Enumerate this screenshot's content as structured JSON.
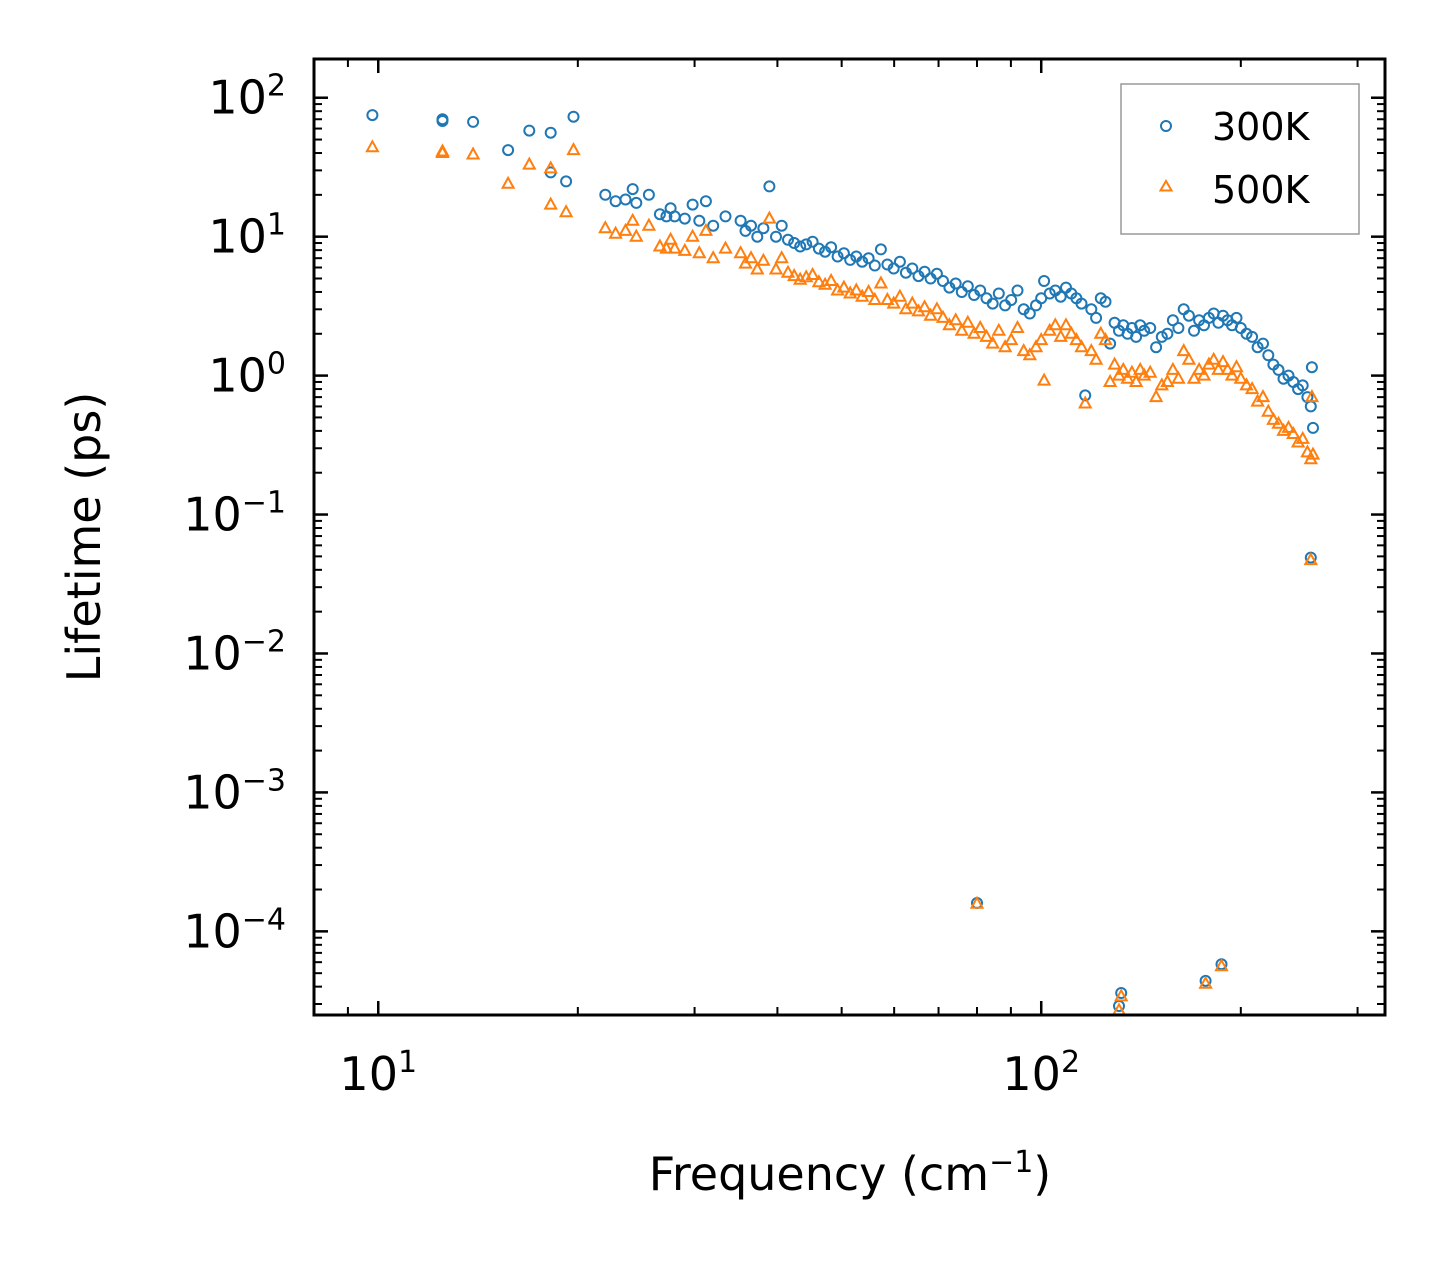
{
  "chart_data": {
    "type": "scatter",
    "title": "",
    "xlabel": "Frequency (cm",
    "xlabel_sup": "−1",
    "xlabel_suffix": ")",
    "ylabel": "Lifetime (ps)",
    "xscale": "log",
    "yscale": "log",
    "xlim": [
      8.0,
      330
    ],
    "ylim": [
      2.5e-05,
      190
    ],
    "x_ticks": [
      {
        "value": 10,
        "base": "10",
        "exp": "1"
      },
      {
        "value": 100,
        "base": "10",
        "exp": "2"
      }
    ],
    "y_ticks": [
      {
        "value": 100,
        "base": "10",
        "exp": "2"
      },
      {
        "value": 10,
        "base": "10",
        "exp": "1"
      },
      {
        "value": 1,
        "base": "10",
        "exp": "0"
      },
      {
        "value": 0.1,
        "base": "10",
        "exp": "−1"
      },
      {
        "value": 0.01,
        "base": "10",
        "exp": "−2"
      },
      {
        "value": 0.001,
        "base": "10",
        "exp": "−3"
      },
      {
        "value": 0.0001,
        "base": "10",
        "exp": "−4"
      }
    ],
    "legend_position": "top-right",
    "series": [
      {
        "name": "300K",
        "color": "#1f77b4",
        "marker": "circle",
        "points": [
          [
            9.8,
            75
          ],
          [
            12.5,
            70
          ],
          [
            12.5,
            68
          ],
          [
            13.9,
            67
          ],
          [
            15.7,
            42
          ],
          [
            16.9,
            58
          ],
          [
            18.2,
            29
          ],
          [
            18.2,
            56
          ],
          [
            19.2,
            25
          ],
          [
            19.7,
            73
          ],
          [
            22.0,
            20
          ],
          [
            22.8,
            18
          ],
          [
            23.6,
            18.5
          ],
          [
            24.2,
            22
          ],
          [
            24.5,
            17.5
          ],
          [
            25.6,
            20
          ],
          [
            26.6,
            14.5
          ],
          [
            27.2,
            14
          ],
          [
            27.6,
            16
          ],
          [
            28.0,
            14
          ],
          [
            29.0,
            13.5
          ],
          [
            29.8,
            17
          ],
          [
            30.5,
            13
          ],
          [
            31.2,
            18
          ],
          [
            32.0,
            12
          ],
          [
            33.4,
            14
          ],
          [
            35.2,
            13
          ],
          [
            35.8,
            11
          ],
          [
            36.5,
            12
          ],
          [
            37.3,
            10
          ],
          [
            38.1,
            11.5
          ],
          [
            38.9,
            23
          ],
          [
            39.8,
            10
          ],
          [
            40.6,
            12
          ],
          [
            41.5,
            9.5
          ],
          [
            42.4,
            9
          ],
          [
            43.3,
            8.5
          ],
          [
            44.2,
            8.8
          ],
          [
            45.2,
            9.2
          ],
          [
            46.2,
            8.2
          ],
          [
            47.2,
            7.8
          ],
          [
            48.2,
            8.4
          ],
          [
            49.3,
            7.2
          ],
          [
            50.4,
            7.6
          ],
          [
            51.5,
            6.8
          ],
          [
            52.6,
            7.2
          ],
          [
            53.7,
            6.6
          ],
          [
            54.9,
            7.0
          ],
          [
            56.1,
            6.2
          ],
          [
            57.3,
            8.1
          ],
          [
            58.6,
            6.3
          ],
          [
            59.9,
            5.9
          ],
          [
            61.2,
            6.6
          ],
          [
            62.5,
            5.5
          ],
          [
            63.9,
            5.9
          ],
          [
            65.3,
            5.2
          ],
          [
            66.7,
            5.6
          ],
          [
            68.1,
            5.0
          ],
          [
            69.6,
            5.4
          ],
          [
            71.1,
            4.8
          ],
          [
            72.7,
            4.3
          ],
          [
            74.3,
            4.6
          ],
          [
            75.9,
            4.0
          ],
          [
            77.5,
            4.4
          ],
          [
            79.2,
            3.8
          ],
          [
            80.9,
            4.1
          ],
          [
            82.7,
            3.6
          ],
          [
            84.5,
            3.3
          ],
          [
            86.3,
            3.9
          ],
          [
            88.2,
            3.2
          ],
          [
            90.1,
            3.5
          ],
          [
            92.1,
            4.1
          ],
          [
            94.1,
            3.0
          ],
          [
            96.1,
            2.8
          ],
          [
            98.2,
            3.2
          ],
          [
            100.0,
            3.6
          ],
          [
            101.0,
            4.8
          ],
          [
            103.0,
            3.9
          ],
          [
            105.0,
            4.1
          ],
          [
            107.0,
            3.7
          ],
          [
            109.0,
            4.3
          ],
          [
            111.0,
            3.9
          ],
          [
            113.0,
            3.6
          ],
          [
            115.0,
            3.3
          ],
          [
            116.5,
            0.72
          ],
          [
            119.0,
            3.0
          ],
          [
            121.0,
            2.6
          ],
          [
            123.0,
            3.6
          ],
          [
            125.0,
            3.4
          ],
          [
            127.0,
            1.7
          ],
          [
            129.0,
            2.4
          ],
          [
            131.0,
            2.1
          ],
          [
            133.0,
            2.3
          ],
          [
            135.0,
            2.0
          ],
          [
            137.0,
            2.2
          ],
          [
            139.0,
            1.9
          ],
          [
            141.0,
            2.3
          ],
          [
            143.0,
            2.1
          ],
          [
            146.0,
            2.2
          ],
          [
            149.0,
            1.6
          ],
          [
            152.0,
            1.9
          ],
          [
            155.0,
            2.0
          ],
          [
            158.0,
            2.5
          ],
          [
            161.0,
            2.2
          ],
          [
            164.0,
            3.0
          ],
          [
            167.0,
            2.7
          ],
          [
            170.0,
            2.1
          ],
          [
            173.0,
            2.5
          ],
          [
            176.0,
            2.3
          ],
          [
            179.0,
            2.6
          ],
          [
            182.0,
            2.8
          ],
          [
            185.0,
            2.4
          ],
          [
            188.0,
            2.7
          ],
          [
            191.0,
            2.5
          ],
          [
            194.0,
            2.3
          ],
          [
            197.0,
            2.6
          ],
          [
            200.0,
            2.2
          ],
          [
            204.0,
            2.0
          ],
          [
            208.0,
            1.9
          ],
          [
            212.0,
            1.6
          ],
          [
            216.0,
            1.7
          ],
          [
            220.0,
            1.4
          ],
          [
            224.0,
            1.2
          ],
          [
            228.0,
            1.1
          ],
          [
            232.0,
            0.95
          ],
          [
            236.0,
            1.0
          ],
          [
            240.0,
            0.9
          ],
          [
            244.0,
            0.8
          ],
          [
            248.0,
            0.85
          ],
          [
            252.0,
            0.7
          ],
          [
            255.0,
            0.6
          ],
          [
            256.0,
            1.15
          ],
          [
            257.0,
            0.42
          ],
          [
            255.0,
            0.049
          ],
          [
            80.0,
            0.00016
          ],
          [
            132.0,
            3.6e-05
          ],
          [
            131.0,
            2.9e-05
          ],
          [
            177.0,
            4.4e-05
          ],
          [
            187.0,
            5.8e-05
          ]
        ]
      },
      {
        "name": "500K",
        "color": "#ff7f0e",
        "marker": "triangle",
        "points": [
          [
            9.8,
            44
          ],
          [
            12.5,
            41
          ],
          [
            12.5,
            40
          ],
          [
            13.9,
            39
          ],
          [
            15.7,
            24
          ],
          [
            16.9,
            33
          ],
          [
            18.2,
            17
          ],
          [
            18.2,
            31
          ],
          [
            19.2,
            15
          ],
          [
            19.7,
            42
          ],
          [
            22.0,
            11.5
          ],
          [
            22.8,
            10.5
          ],
          [
            23.6,
            11
          ],
          [
            24.2,
            13
          ],
          [
            24.5,
            10
          ],
          [
            25.6,
            12
          ],
          [
            26.6,
            8.5
          ],
          [
            27.2,
            8.2
          ],
          [
            27.6,
            9.5
          ],
          [
            28.0,
            8.2
          ],
          [
            29.0,
            7.9
          ],
          [
            29.8,
            10
          ],
          [
            30.5,
            7.6
          ],
          [
            31.2,
            11
          ],
          [
            32.0,
            7.0
          ],
          [
            33.4,
            8.2
          ],
          [
            35.2,
            7.6
          ],
          [
            35.8,
            6.4
          ],
          [
            36.5,
            7.0
          ],
          [
            37.3,
            5.8
          ],
          [
            38.1,
            6.7
          ],
          [
            38.9,
            13.5
          ],
          [
            39.8,
            5.8
          ],
          [
            40.6,
            7.0
          ],
          [
            41.5,
            5.5
          ],
          [
            42.4,
            5.2
          ],
          [
            43.3,
            4.9
          ],
          [
            44.2,
            5.1
          ],
          [
            45.2,
            5.3
          ],
          [
            46.2,
            4.7
          ],
          [
            47.2,
            4.5
          ],
          [
            48.2,
            4.8
          ],
          [
            49.3,
            4.1
          ],
          [
            50.4,
            4.3
          ],
          [
            51.5,
            3.9
          ],
          [
            52.6,
            4.1
          ],
          [
            53.7,
            3.7
          ],
          [
            54.9,
            4.0
          ],
          [
            56.1,
            3.5
          ],
          [
            57.3,
            4.6
          ],
          [
            58.6,
            3.5
          ],
          [
            59.9,
            3.3
          ],
          [
            61.2,
            3.7
          ],
          [
            62.5,
            3.0
          ],
          [
            63.9,
            3.3
          ],
          [
            65.3,
            2.9
          ],
          [
            66.7,
            3.1
          ],
          [
            68.1,
            2.7
          ],
          [
            69.6,
            3.0
          ],
          [
            71.1,
            2.6
          ],
          [
            72.7,
            2.3
          ],
          [
            74.3,
            2.5
          ],
          [
            75.9,
            2.1
          ],
          [
            77.5,
            2.4
          ],
          [
            79.2,
            2.0
          ],
          [
            80.9,
            2.2
          ],
          [
            82.7,
            1.9
          ],
          [
            84.5,
            1.7
          ],
          [
            86.3,
            2.1
          ],
          [
            88.2,
            1.6
          ],
          [
            90.1,
            1.8
          ],
          [
            92.1,
            2.2
          ],
          [
            94.1,
            1.5
          ],
          [
            96.1,
            1.4
          ],
          [
            98.2,
            1.6
          ],
          [
            100.0,
            1.8
          ],
          [
            101.0,
            0.92
          ],
          [
            103.0,
            2.1
          ],
          [
            105.0,
            2.3
          ],
          [
            107.0,
            1.9
          ],
          [
            109.0,
            2.3
          ],
          [
            111.0,
            2.0
          ],
          [
            113.0,
            1.8
          ],
          [
            115.0,
            1.6
          ],
          [
            116.5,
            0.63
          ],
          [
            119.0,
            1.5
          ],
          [
            121.0,
            1.3
          ],
          [
            123.0,
            2.0
          ],
          [
            125.0,
            1.8
          ],
          [
            127.0,
            0.9
          ],
          [
            129.0,
            1.2
          ],
          [
            131.0,
            1.0
          ],
          [
            133.0,
            1.1
          ],
          [
            135.0,
            0.95
          ],
          [
            137.0,
            1.05
          ],
          [
            139.0,
            0.9
          ],
          [
            141.0,
            1.1
          ],
          [
            143.0,
            1.0
          ],
          [
            146.0,
            1.05
          ],
          [
            149.0,
            0.7
          ],
          [
            152.0,
            0.85
          ],
          [
            155.0,
            0.9
          ],
          [
            158.0,
            1.1
          ],
          [
            161.0,
            0.95
          ],
          [
            164.0,
            1.5
          ],
          [
            167.0,
            1.3
          ],
          [
            170.0,
            0.95
          ],
          [
            173.0,
            1.1
          ],
          [
            176.0,
            1.0
          ],
          [
            179.0,
            1.2
          ],
          [
            182.0,
            1.3
          ],
          [
            185.0,
            1.1
          ],
          [
            188.0,
            1.25
          ],
          [
            191.0,
            1.1
          ],
          [
            194.0,
            1.0
          ],
          [
            197.0,
            1.15
          ],
          [
            200.0,
            0.95
          ],
          [
            204.0,
            0.85
          ],
          [
            208.0,
            0.8
          ],
          [
            212.0,
            0.65
          ],
          [
            216.0,
            0.7
          ],
          [
            220.0,
            0.55
          ],
          [
            224.0,
            0.48
          ],
          [
            228.0,
            0.45
          ],
          [
            232.0,
            0.4
          ],
          [
            236.0,
            0.42
          ],
          [
            240.0,
            0.38
          ],
          [
            244.0,
            0.33
          ],
          [
            248.0,
            0.35
          ],
          [
            252.0,
            0.28
          ],
          [
            255.0,
            0.25
          ],
          [
            256.0,
            0.7
          ],
          [
            257.0,
            0.27
          ],
          [
            255.0,
            0.047
          ],
          [
            80.0,
            0.000158
          ],
          [
            132.0,
            3.4e-05
          ],
          [
            131.0,
            2.7e-05
          ],
          [
            177.0,
            4.2e-05
          ],
          [
            187.0,
            5.6e-05
          ]
        ]
      }
    ]
  }
}
